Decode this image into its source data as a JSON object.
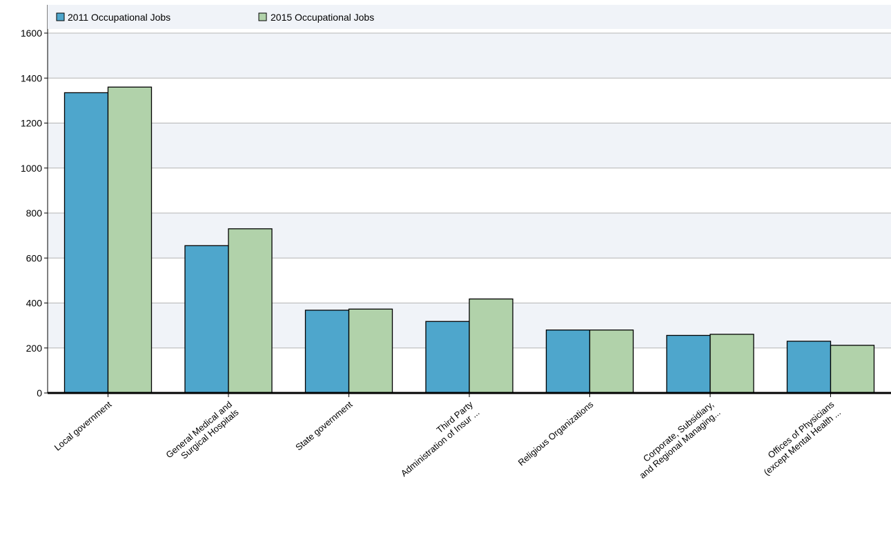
{
  "chart_data": {
    "type": "bar",
    "title": "",
    "xlabel": "",
    "ylabel": "",
    "ylim": [
      0,
      1600
    ],
    "yticks": [
      0,
      200,
      400,
      600,
      800,
      1000,
      1200,
      1400,
      1600
    ],
    "grid": true,
    "legend_position": "top-left",
    "categories": [
      [
        "Local government"
      ],
      [
        "General Medical and",
        "Surgical Hospitals"
      ],
      [
        "State government"
      ],
      [
        "Third Party",
        "Administration of Insur ..."
      ],
      [
        "Religious Organizations"
      ],
      [
        "Corporate, Subsidiary,",
        "and Regional Managing..."
      ],
      [
        "Offices of Physicians",
        "(except Mental Health ..."
      ]
    ],
    "series": [
      {
        "name": "2011 Occupational Jobs",
        "color": "#4ea6cc",
        "values": [
          1335,
          655,
          368,
          318,
          280,
          256,
          230
        ]
      },
      {
        "name": "2015 Occupational Jobs",
        "color": "#b1d2aa",
        "values": [
          1360,
          730,
          373,
          418,
          280,
          261,
          212
        ]
      }
    ]
  }
}
